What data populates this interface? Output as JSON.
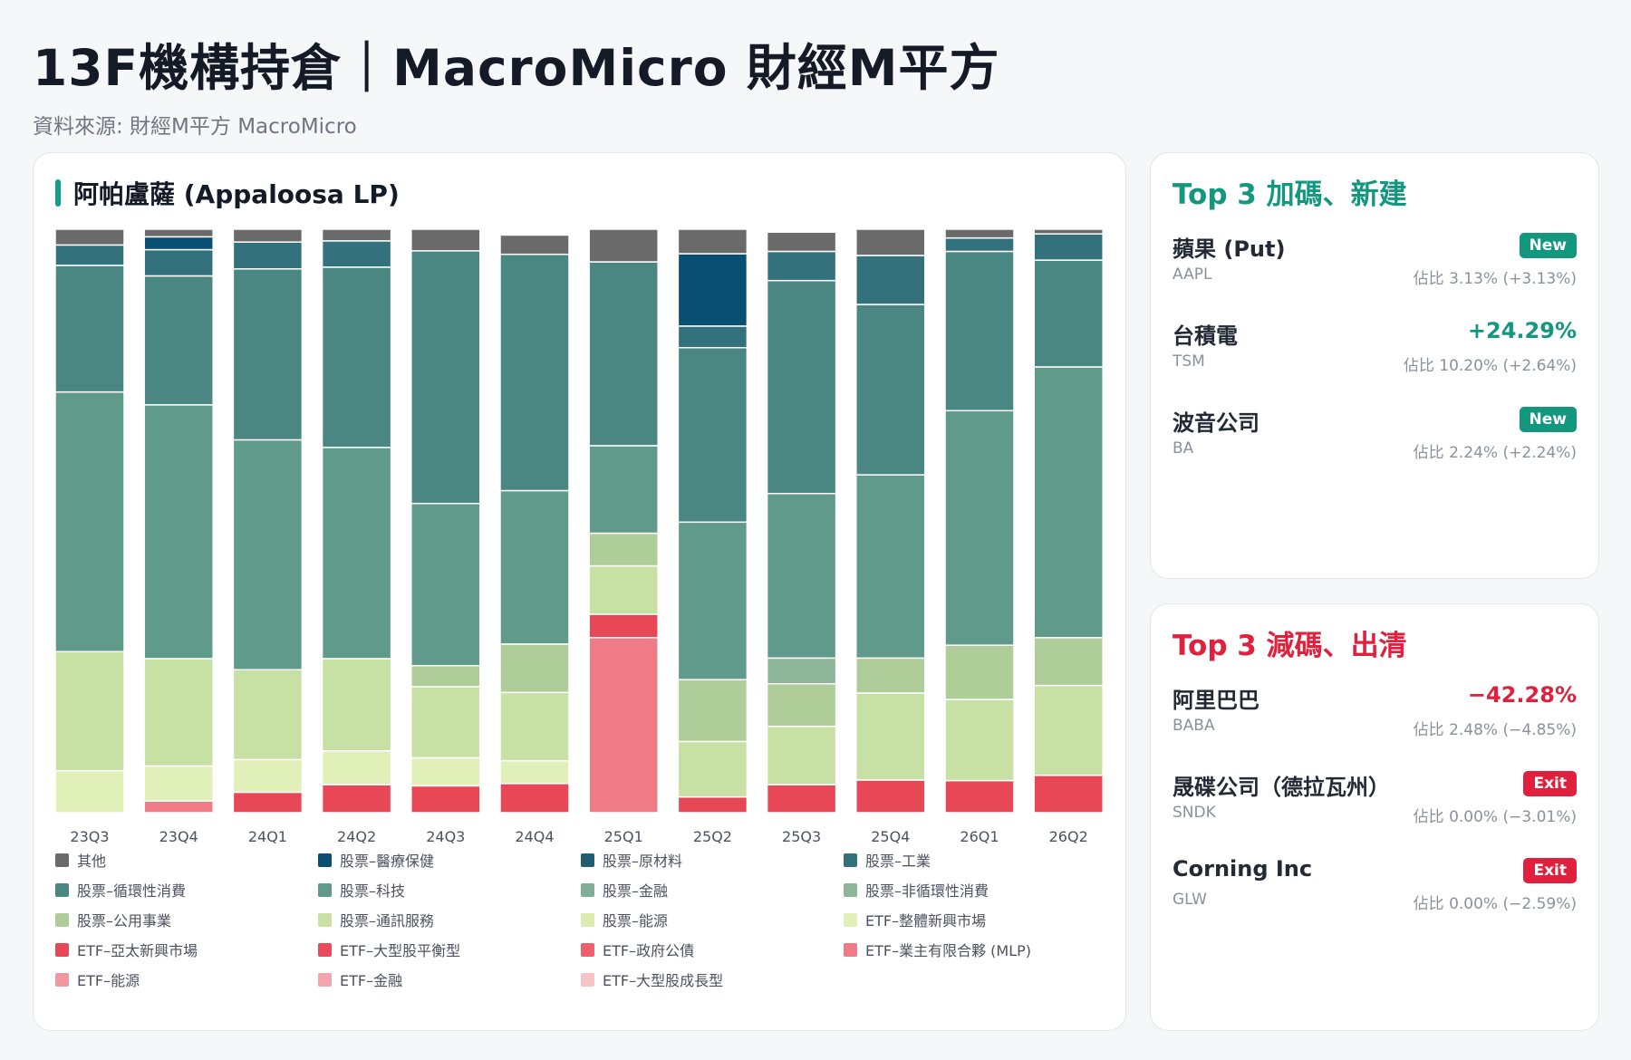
{
  "page": {
    "title": "13F機構持倉｜MacroMicro 財經M平方",
    "source": "資料來源: 財經M平方 MacroMicro"
  },
  "chart_card": {
    "title": "阿帕盧薩 (Appaloosa LP)"
  },
  "chart_data": {
    "type": "bar",
    "stacked": true,
    "normalized": true,
    "ylim": [
      0,
      100
    ],
    "categories": [
      "23Q3",
      "23Q4",
      "24Q1",
      "24Q2",
      "24Q3",
      "24Q4",
      "25Q1",
      "25Q2",
      "25Q3",
      "25Q4",
      "26Q1",
      "26Q2"
    ],
    "series": [
      {
        "name": "ETF–大型股成長型",
        "color": "#f7c3c7",
        "values": [
          0,
          0,
          0,
          0,
          0,
          0,
          0,
          0,
          0,
          0,
          0,
          0
        ]
      },
      {
        "name": "ETF–金融",
        "color": "#f4a4ab",
        "values": [
          0,
          0,
          0,
          0,
          0,
          0,
          0,
          0,
          0,
          0,
          0,
          0
        ]
      },
      {
        "name": "ETF–能源",
        "color": "#f2979f",
        "values": [
          0,
          0,
          0,
          0,
          0,
          0,
          0,
          0,
          0,
          0,
          0,
          0
        ]
      },
      {
        "name": "ETF–業主有限合夥 (MLP)",
        "color": "#f07b86",
        "values": [
          0,
          2,
          0,
          0,
          0,
          0,
          30,
          0,
          0,
          0,
          0,
          0
        ]
      },
      {
        "name": "ETF–政府公債",
        "color": "#ed5f6b",
        "values": [
          0,
          0,
          0,
          0,
          0,
          0,
          0,
          0,
          0,
          0,
          0,
          0
        ]
      },
      {
        "name": "ETF–大型股平衡型",
        "color": "#e84b5a",
        "values": [
          0,
          0,
          0,
          0,
          0,
          0,
          0,
          0,
          0,
          0,
          0,
          0
        ]
      },
      {
        "name": "ETF–亞太新興市場",
        "color": "#e84856",
        "values": [
          0,
          0,
          3.5,
          4.8,
          4.6,
          5,
          4,
          2.7,
          4.8,
          5.6,
          5.5,
          6.4
        ]
      },
      {
        "name": "ETF–整體新興市場",
        "color": "#e1efb9",
        "values": [
          7.2,
          6,
          5.6,
          5.8,
          4.8,
          3.9,
          0,
          0,
          0,
          0,
          0,
          0
        ]
      },
      {
        "name": "股票–能源",
        "color": "#dcecb0",
        "values": [
          0,
          0,
          0,
          0,
          0,
          0,
          0,
          0,
          0,
          0,
          0,
          0
        ]
      },
      {
        "name": "股票–通訊服務",
        "color": "#c7e0a4",
        "values": [
          20.4,
          18.4,
          15.4,
          15.8,
          12.2,
          11.7,
          8.3,
          9.5,
          10,
          14.9,
          13.9,
          15.4
        ]
      },
      {
        "name": "股票–公用事業",
        "color": "#aecd98",
        "values": [
          0,
          0,
          0,
          0,
          3.6,
          8.3,
          5.6,
          10.6,
          7.3,
          6,
          9.3,
          8.2
        ]
      },
      {
        "name": "股票–非循環性消費",
        "color": "#8eb698",
        "values": [
          0,
          0,
          0,
          0,
          0,
          0,
          0,
          0,
          4.4,
          0,
          0,
          0
        ]
      },
      {
        "name": "股票–金融",
        "color": "#7faf96",
        "values": [
          0,
          0,
          0,
          0,
          0,
          0,
          0,
          0,
          0,
          0,
          0,
          0
        ]
      },
      {
        "name": "股票–科技",
        "color": "#5f9a8a",
        "values": [
          44.5,
          43.5,
          39.4,
          36.2,
          27.8,
          26.3,
          15,
          27,
          28.2,
          31.4,
          40.2,
          46.4
        ]
      },
      {
        "name": "股票–循環性消費",
        "color": "#4a8783",
        "values": [
          21.7,
          22.1,
          29.3,
          30.9,
          43.3,
          40.5,
          31.5,
          29.9,
          36.5,
          29.2,
          27.3,
          18.3
        ]
      },
      {
        "name": "股票–工業",
        "color": "#33717d",
        "values": [
          3.5,
          4.5,
          4.6,
          4.5,
          0,
          0,
          0,
          3.7,
          5,
          8.4,
          2.3,
          4.5
        ]
      },
      {
        "name": "股票–原材料",
        "color": "#205d73",
        "values": [
          0,
          0,
          0,
          0,
          0,
          0,
          0,
          0,
          0,
          0,
          0,
          0
        ]
      },
      {
        "name": "股票–醫療保健",
        "color": "#084f73",
        "values": [
          0,
          2.2,
          0,
          0,
          0,
          0,
          0,
          12.4,
          0,
          0,
          0,
          0
        ]
      },
      {
        "name": "其他",
        "color": "#6a6a6a",
        "values": [
          2.7,
          1.3,
          2.2,
          2.0,
          3.7,
          3.3,
          5.6,
          4.2,
          3.3,
          4.5,
          1.5,
          0.8
        ]
      }
    ],
    "legend_order": [
      "其他",
      "股票–醫療保健",
      "股票–原材料",
      "股票–工業",
      "股票–循環性消費",
      "股票–科技",
      "股票–金融",
      "股票–非循環性消費",
      "股票–公用事業",
      "股票–通訊服務",
      "股票–能源",
      "ETF–整體新興市場",
      "ETF–亞太新興市場",
      "ETF–大型股平衡型",
      "ETF–政府公債",
      "ETF–業主有限合夥 (MLP)",
      "ETF–能源",
      "ETF–金融",
      "ETF–大型股成長型"
    ],
    "legend_position": "bottom"
  },
  "top_add": {
    "title": "Top 3 加碼、新建",
    "items": [
      {
        "name": "蘋果 (Put)",
        "ticker": "AAPL",
        "share": "佔比 3.13% (+3.13%)",
        "badge": "New",
        "change": ""
      },
      {
        "name": "台積電",
        "ticker": "TSM",
        "share": "佔比 10.20% (+2.64%)",
        "badge": "",
        "change": "+24.29%"
      },
      {
        "name": "波音公司",
        "ticker": "BA",
        "share": "佔比 2.24% (+2.24%)",
        "badge": "New",
        "change": ""
      }
    ]
  },
  "top_cut": {
    "title": "Top 3 減碼、出清",
    "items": [
      {
        "name": "阿里巴巴",
        "ticker": "BABA",
        "share": "佔比 2.48% (−4.85%)",
        "badge": "",
        "change": "−42.28%"
      },
      {
        "name": "晟碟公司（德拉瓦州）",
        "ticker": "SNDK",
        "share": "佔比 0.00% (−3.01%)",
        "badge": "Exit",
        "change": ""
      },
      {
        "name": "Corning Inc",
        "ticker": "GLW",
        "share": "佔比 0.00% (−2.59%)",
        "badge": "Exit",
        "change": ""
      }
    ]
  }
}
